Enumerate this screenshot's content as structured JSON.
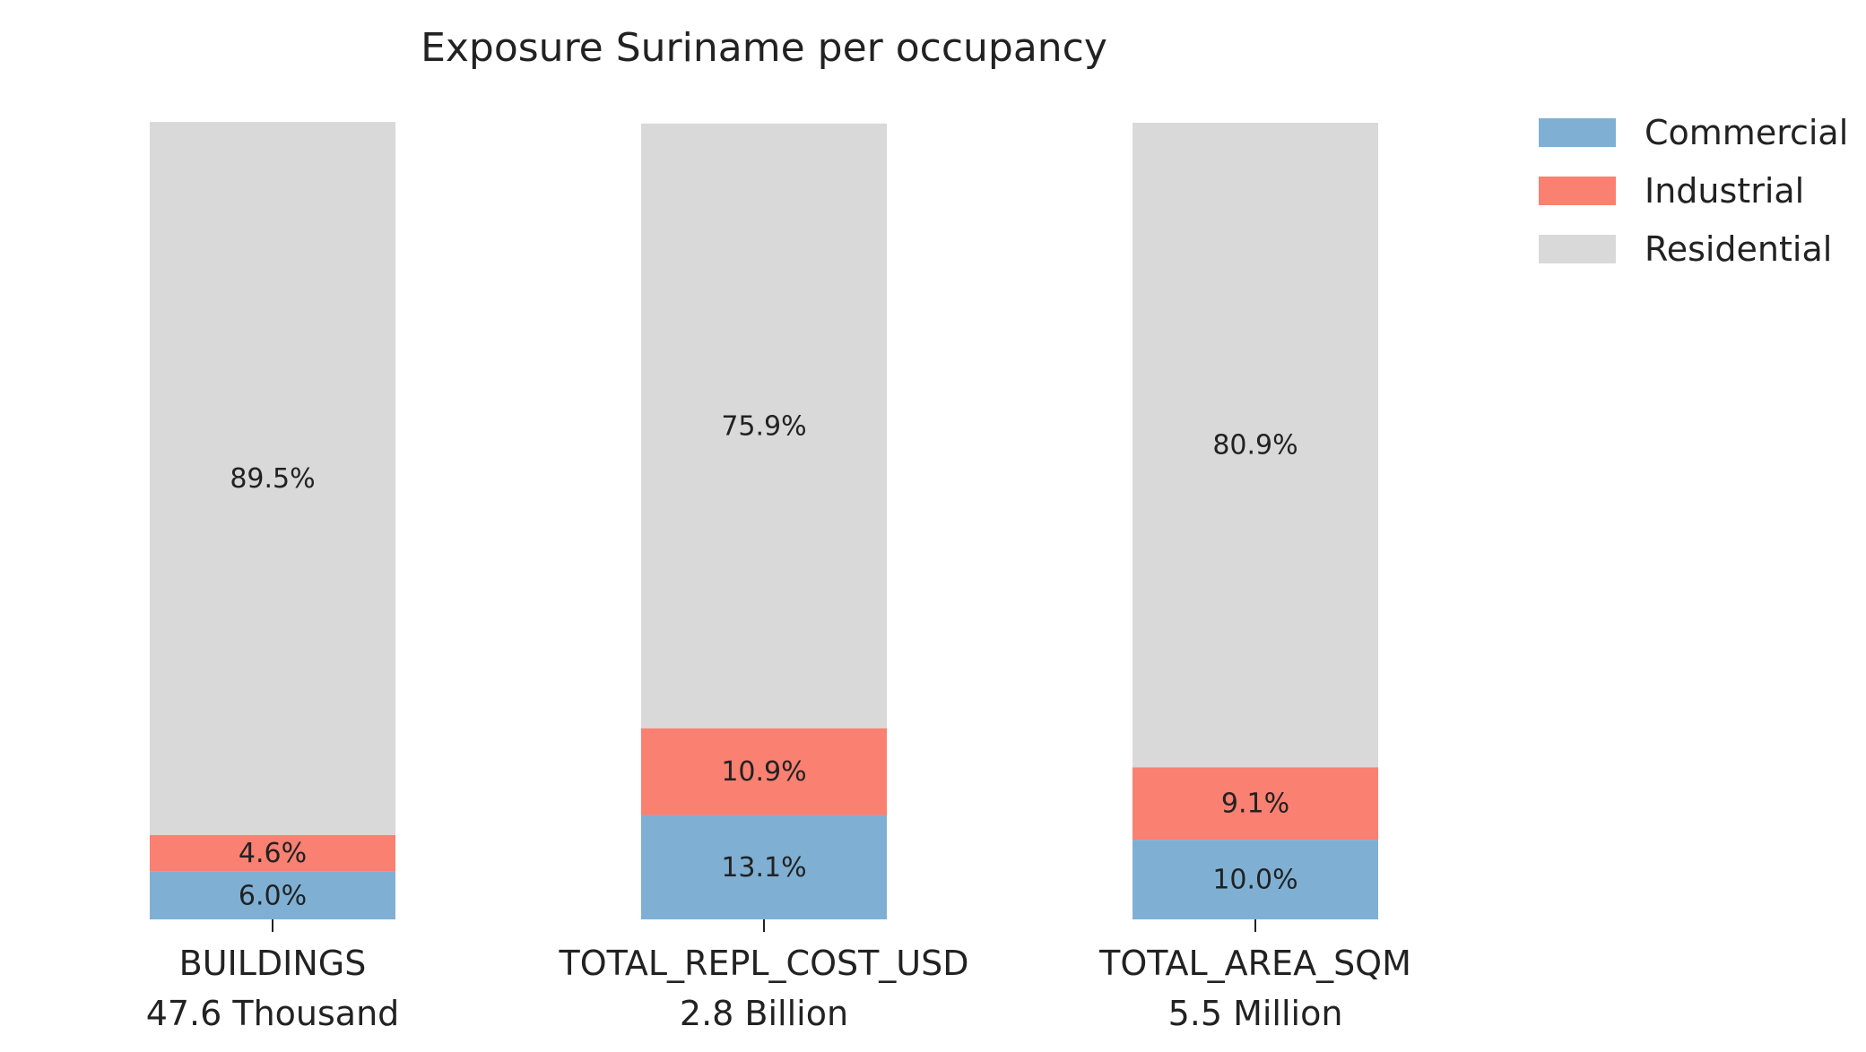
{
  "chart_data": {
    "type": "bar",
    "stacked": true,
    "percent": true,
    "title": "Exposure Suriname per occupancy",
    "categories": [
      "BUILDINGS",
      "TOTAL_REPL_COST_USD",
      "TOTAL_AREA_SQM"
    ],
    "category_totals": [
      "47.6 Thousand",
      "2.8 Billion",
      "5.5 Million"
    ],
    "ylim": [
      0,
      100
    ],
    "grid": false,
    "legend_position": "top-right",
    "series": [
      {
        "name": "Commercial",
        "color": "#7fb0d4",
        "values": [
          6.0,
          13.1,
          10.0
        ],
        "labels": [
          "6.0%",
          "13.1%",
          "10.0%"
        ]
      },
      {
        "name": "Industrial",
        "color": "#fa8072",
        "values": [
          4.6,
          10.9,
          9.1
        ],
        "labels": [
          "4.6%",
          "10.9%",
          "9.1%"
        ]
      },
      {
        "name": "Residential",
        "color": "#d9d9d9",
        "values": [
          89.5,
          75.9,
          80.9
        ],
        "labels": [
          "89.5%",
          "75.9%",
          "80.9%"
        ]
      }
    ]
  }
}
